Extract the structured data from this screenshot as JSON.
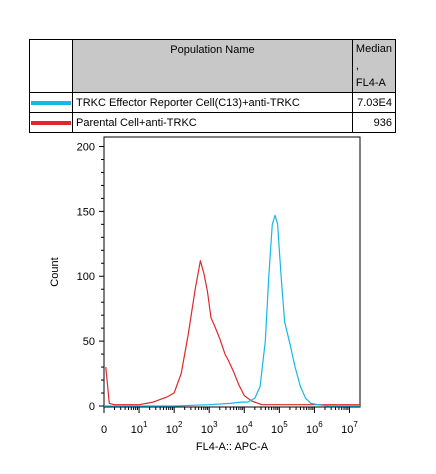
{
  "table": {
    "header_name": "Population Name",
    "header_median_line1": "Median ,",
    "header_median_line2": "FL4-A",
    "rows": [
      {
        "name": "TRKC Effector Reporter Cell(C13)+anti-TRKC",
        "median": "7.03E4",
        "color": "#16b8e8"
      },
      {
        "name": "Parental Cell+anti-TRKC",
        "median": "936",
        "color": "#e0282a"
      }
    ]
  },
  "chart_data": {
    "type": "line",
    "title": "",
    "xlabel": "FL4-A:: APC-A",
    "ylabel": "Count",
    "xscale": "log",
    "xlim": [
      0,
      7.3
    ],
    "ylim": [
      0,
      205
    ],
    "y_ticks": [
      "0",
      "50",
      "100",
      "150",
      "200"
    ],
    "x_ticks": [
      {
        "base": "10",
        "exp": "1"
      },
      {
        "base": "10",
        "exp": "2"
      },
      {
        "base": "10",
        "exp": "3"
      },
      {
        "base": "10",
        "exp": "4"
      },
      {
        "base": "10",
        "exp": "5"
      },
      {
        "base": "10",
        "exp": "6"
      },
      {
        "base": "10",
        "exp": "7"
      }
    ],
    "x_low_tick": "0",
    "series": [
      {
        "name": "Parental Cell+anti-TRKC",
        "color": "#e0282a",
        "x": [
          0.05,
          0.15,
          0.3,
          0.6,
          1.0,
          1.4,
          1.8,
          2.0,
          2.2,
          2.4,
          2.6,
          2.75,
          2.85,
          2.95,
          3.05,
          3.15,
          3.3,
          3.45,
          3.55,
          3.7,
          3.85,
          4.0,
          4.2,
          4.5,
          5.0,
          6.0,
          7.3
        ],
        "y": [
          30,
          2,
          1,
          1,
          1,
          3,
          7,
          10,
          25,
          55,
          90,
          112,
          102,
          88,
          68,
          62,
          52,
          40,
          35,
          26,
          16,
          8,
          4,
          1,
          1,
          1,
          1
        ]
      },
      {
        "name": "TRKC Effector Reporter Cell(C13)+anti-TRKC",
        "color": "#16b8e8",
        "x": [
          0.0,
          1.0,
          2.0,
          3.0,
          3.6,
          3.9,
          4.1,
          4.3,
          4.45,
          4.6,
          4.7,
          4.8,
          4.88,
          4.95,
          5.05,
          5.15,
          5.3,
          5.45,
          5.6,
          5.75,
          5.9,
          6.1,
          6.4,
          7.3
        ],
        "y": [
          0,
          0,
          0,
          1,
          2,
          3,
          3,
          6,
          15,
          50,
          100,
          140,
          147,
          140,
          100,
          65,
          48,
          30,
          15,
          6,
          2,
          1,
          0,
          0
        ]
      }
    ]
  }
}
